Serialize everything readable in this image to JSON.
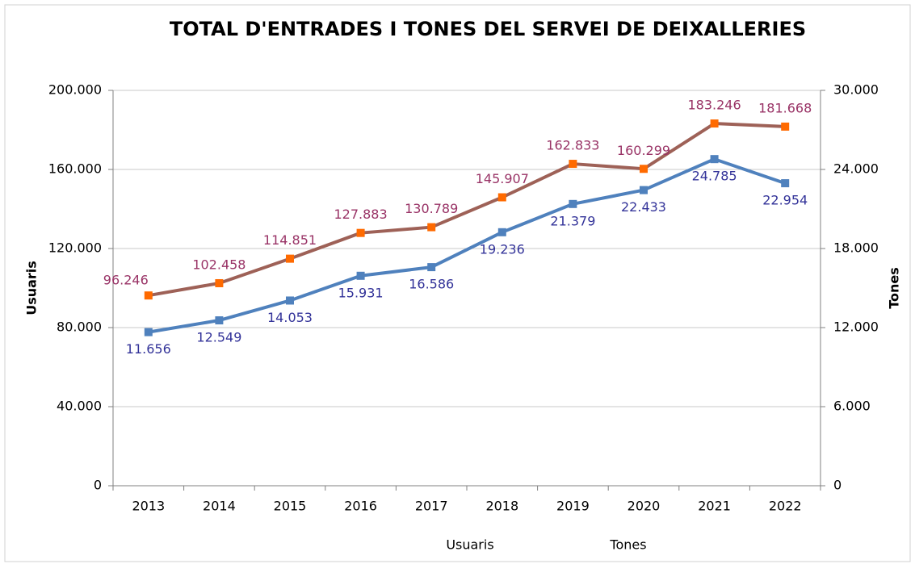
{
  "chart_data": {
    "type": "line",
    "title": "TOTAL D'ENTRADES I TONES DEL SERVEI DE DEIXALLERIES",
    "y_label": "Usuaris",
    "y2_label": "Tones",
    "categories": [
      "2013",
      "2014",
      "2015",
      "2016",
      "2017",
      "2018",
      "2019",
      "2020",
      "2021",
      "2022"
    ],
    "series": [
      {
        "name": "Usuaris",
        "color": "#9e6157",
        "marker_color": "#ff6a00",
        "label_color": "#993366",
        "values": [
          96246,
          102458,
          114851,
          127883,
          130789,
          145907,
          162833,
          160299,
          183246,
          181668
        ],
        "value_labels": [
          "96.246",
          "102.458",
          "114.851",
          "127.883",
          "130.789",
          "145.907",
          "162.833",
          "160.299",
          "183.246",
          "181.668"
        ]
      },
      {
        "name": "Tones",
        "color": "#4f81bd",
        "marker_color": "#4f81bd",
        "label_color": "#333399",
        "axis": "y2",
        "values": [
          11656,
          12549,
          14053,
          15931,
          16586,
          19236,
          21379,
          22433,
          24785,
          22954
        ],
        "value_labels": [
          "11.656",
          "12.549",
          "14.053",
          "15.931",
          "16.586",
          "19.236",
          "21.379",
          "22.433",
          "24.785",
          "22.954"
        ]
      }
    ],
    "ylim": [
      0,
      200000
    ],
    "yticks": [
      0,
      {
        "value": 40000,
        "label": "40.000"
      },
      {
        "value": 80000,
        "label": "80.000"
      },
      {
        "value": 120000,
        "label": "120.000"
      },
      {
        "value": 160000,
        "label": "160.000"
      },
      {
        "value": 200000,
        "label": "200.000"
      }
    ],
    "y2lim": [
      0,
      30000
    ],
    "y2ticks": [
      0,
      {
        "value": 6000,
        "label": "6.000"
      },
      {
        "value": 12000,
        "label": "12.000"
      },
      {
        "value": 18000,
        "label": "18.000"
      },
      {
        "value": 24000,
        "label": "24.000"
      },
      {
        "value": 30000,
        "label": "30.000"
      }
    ],
    "grid": true,
    "legend": "bottom"
  }
}
